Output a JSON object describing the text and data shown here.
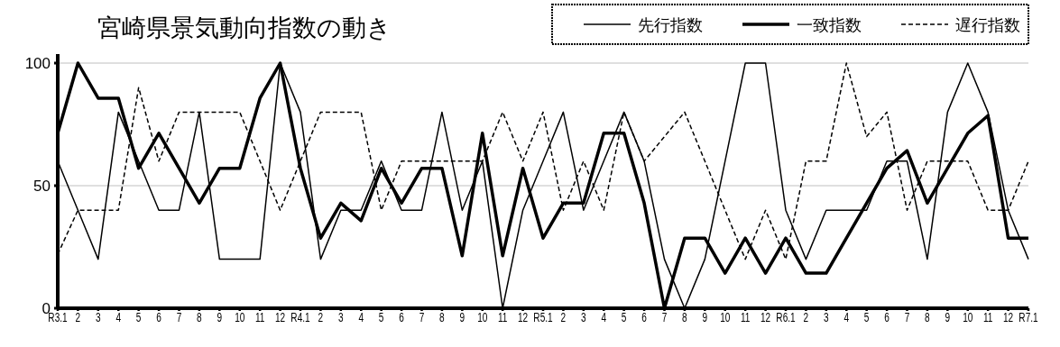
{
  "chart_data": {
    "type": "line",
    "title": "宮崎県景気動向指数の動き",
    "categories": [
      "R3.1",
      "2",
      "3",
      "4",
      "5",
      "6",
      "7",
      "8",
      "9",
      "10",
      "11",
      "12",
      "R4.1",
      "2",
      "3",
      "4",
      "5",
      "6",
      "7",
      "8",
      "9",
      "10",
      "11",
      "12",
      "R5.1",
      "2",
      "3",
      "4",
      "5",
      "6",
      "7",
      "8",
      "9",
      "10",
      "11",
      "12",
      "R6.1",
      "2",
      "3",
      "4",
      "5",
      "6",
      "7",
      "8",
      "9",
      "10",
      "11",
      "12",
      "R7.1"
    ],
    "ylim": [
      0,
      100
    ],
    "yticks": [
      0,
      50,
      100
    ],
    "grid": "y",
    "legend": "top right",
    "marker": "none",
    "series": [
      {
        "name": "先行指数",
        "color": "#000000",
        "line_style": "solid",
        "values": [
          60,
          40,
          20,
          80,
          60,
          40,
          40,
          80,
          20,
          20,
          20,
          100,
          80,
          20,
          40,
          40,
          60,
          40,
          40,
          80,
          40,
          60,
          0,
          40,
          60,
          80,
          40,
          60,
          80,
          60,
          20,
          0,
          20,
          60,
          100,
          100,
          40,
          20,
          40,
          40,
          40,
          60,
          60,
          20,
          80,
          100,
          80,
          40,
          20
        ]
      },
      {
        "name": "一致指数",
        "color": "#000000",
        "line_style": "solid",
        "values": [
          71.4,
          100,
          85.7,
          85.7,
          57.1,
          71.4,
          57.1,
          42.9,
          57.1,
          57.1,
          85.7,
          100,
          57.1,
          28.6,
          42.9,
          35.7,
          57.1,
          42.9,
          57.1,
          57.1,
          21.4,
          71.4,
          21.4,
          57.1,
          28.6,
          42.9,
          42.9,
          71.4,
          71.4,
          42.9,
          0,
          28.6,
          28.6,
          14.3,
          28.6,
          14.3,
          28.6,
          14.3,
          14.3,
          28.6,
          42.9,
          57.1,
          64.3,
          42.9,
          57.1,
          71.4,
          78.6,
          28.6,
          28.6
        ]
      },
      {
        "name": "遅行指数",
        "color": "#000000",
        "line_style": "dashed",
        "values": [
          22,
          40,
          40,
          40,
          90,
          60,
          80,
          80,
          80,
          80,
          60,
          40,
          60,
          80,
          80,
          80,
          40,
          60,
          60,
          60,
          60,
          60,
          80,
          60,
          80,
          40,
          60,
          40,
          80,
          60,
          70,
          80,
          60,
          40,
          20,
          40,
          20,
          60,
          60,
          100,
          70,
          80,
          40,
          60,
          60,
          60,
          40,
          40,
          60
        ]
      }
    ]
  }
}
